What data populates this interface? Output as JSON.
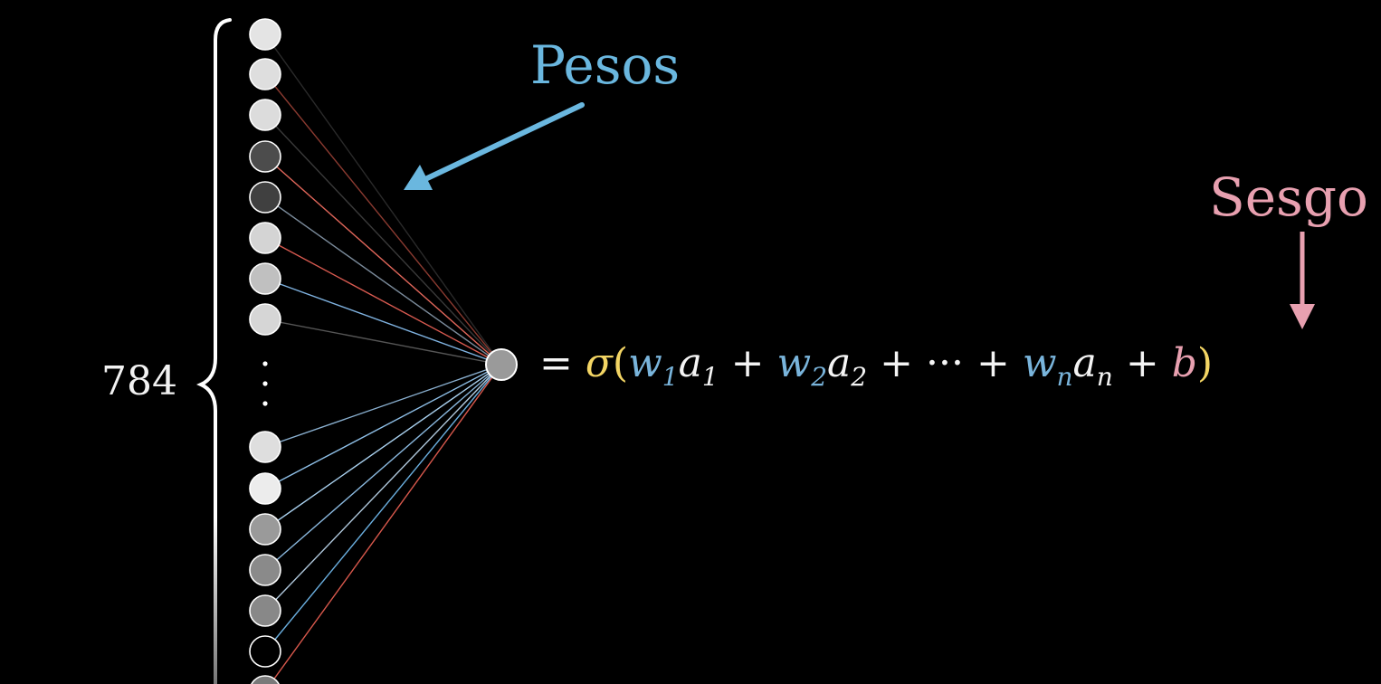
{
  "labels": {
    "count": "784",
    "weights": "Pesos",
    "bias": "Sesgo"
  },
  "equation": {
    "equals": "=",
    "sigma": "σ",
    "open": "(",
    "w1": "w",
    "w1_sub": "1",
    "a1": "a",
    "a1_sub": "1",
    "plus1": "+",
    "w2": "w",
    "w2_sub": "2",
    "a2": "a",
    "a2_sub": "2",
    "plus2": "+",
    "dots": "···",
    "plus3": "+",
    "wn": "w",
    "wn_sub": "n",
    "an": "a",
    "an_sub": "n",
    "plus4": "+",
    "b": "b",
    "close": ")"
  },
  "network": {
    "input_neurons": [
      {
        "shade": "#e4e4e4",
        "link": "#2a2a2a"
      },
      {
        "shade": "#dedede",
        "link": "#8a3a30"
      },
      {
        "shade": "#dcdcdc",
        "link": "#3a3a3a"
      },
      {
        "shade": "#4c4c4c",
        "link": "#e0665a"
      },
      {
        "shade": "#404040",
        "link": "#7a8a9a"
      },
      {
        "shade": "#d4d4d4",
        "link": "#d85a50"
      },
      {
        "shade": "#c0c0c0",
        "link": "#7fb2e0"
      },
      {
        "shade": "#d6d6d6",
        "link": "#555555"
      },
      {
        "shade": "#dedede",
        "link": "#8ab0d0"
      },
      {
        "shade": "#ececec",
        "link": "#8fc0e8"
      },
      {
        "shade": "#9a9a9a",
        "link": "#a9d0ee"
      },
      {
        "shade": "#8a8a8a",
        "link": "#8ab8de"
      },
      {
        "shade": "#888888",
        "link": "#b0c8dc"
      },
      {
        "shade": "#000000",
        "link": "#6aaede"
      },
      {
        "shade": "#7a7a7a",
        "link": "#d8584c"
      }
    ],
    "output_neuron_shade": "#9a9a9a",
    "colors": {
      "weights_arrow": "#6ab7df",
      "bias_arrow": "#e8a0b0",
      "brace": "#ffffff"
    }
  }
}
